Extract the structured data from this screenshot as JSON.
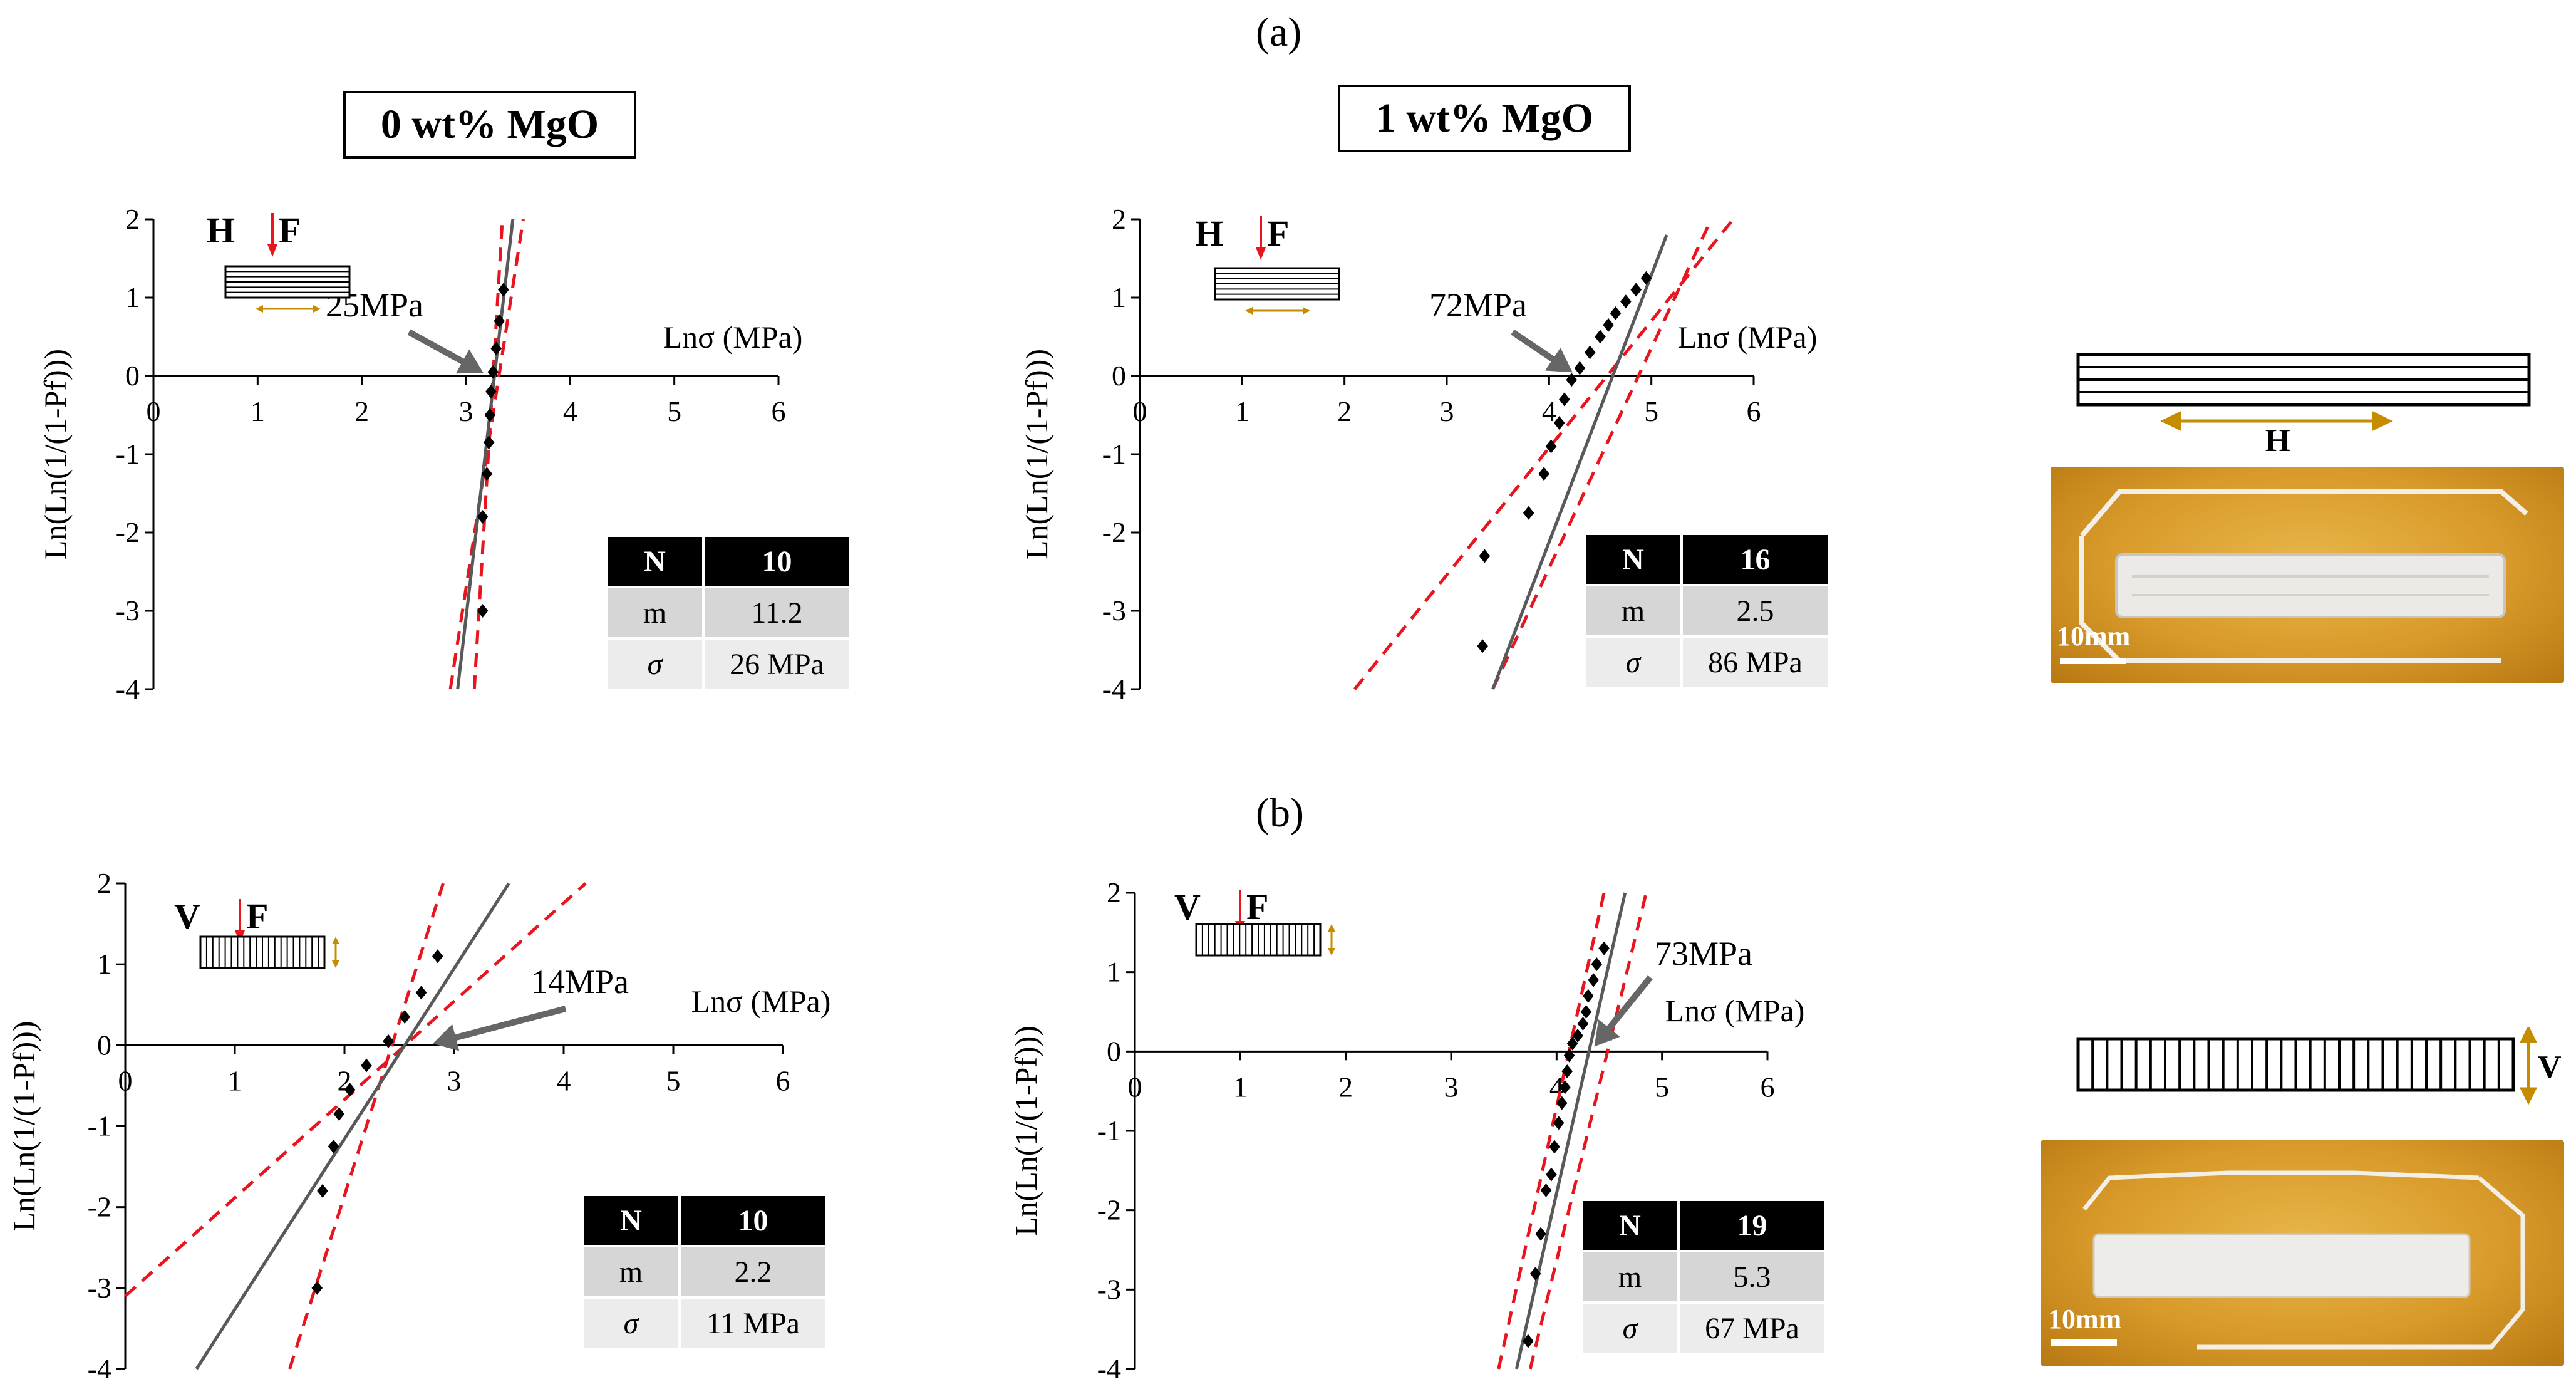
{
  "labels": {
    "panel_a": "(a)",
    "panel_b": "(b)",
    "title_0": "0 wt% MgO",
    "title_1": "1 wt% MgO"
  },
  "photos": {
    "scale_label": "10mm",
    "orientation_h": "H",
    "orientation_v": "V"
  },
  "colors": {
    "fit": "#595959",
    "bound": "#e8141e",
    "point": "#000000",
    "arrow": "#c58c00",
    "table_header": "#000000",
    "table_row": "#d9d9d9"
  },
  "chart_data": [
    {
      "type": "scatter",
      "id": "a0",
      "xlabel": "Lnσ (MPa)",
      "ylabel": "Ln(Ln(1/(1-Pf)))",
      "xlim": [
        0,
        6
      ],
      "ylim": [
        -4,
        2
      ],
      "x_ticks": [
        "0",
        "1",
        "2",
        "3",
        "4",
        "5",
        "6"
      ],
      "y_ticks": [
        "2",
        "1",
        "0",
        "-1",
        "-2",
        "-3",
        "-4"
      ],
      "orientation": "H",
      "force": "F",
      "annotation": "25MPa",
      "annotation_target": [
        3.22,
        0
      ],
      "points": [
        [
          3.16,
          -3.0
        ],
        [
          3.16,
          -1.8
        ],
        [
          3.2,
          -1.25
        ],
        [
          3.22,
          -0.85
        ],
        [
          3.23,
          -0.5
        ],
        [
          3.24,
          -0.2
        ],
        [
          3.26,
          0.05
        ],
        [
          3.29,
          0.35
        ],
        [
          3.32,
          0.7
        ],
        [
          3.36,
          1.1
        ]
      ],
      "fit": [
        [
          2.92,
          -4
        ],
        [
          3.45,
          2
        ]
      ],
      "bounds": [
        [
          [
            2.85,
            -4
          ],
          [
            3.55,
            2
          ]
        ],
        [
          [
            3.08,
            -4
          ],
          [
            3.35,
            2
          ]
        ]
      ],
      "table": {
        "header": [
          "N",
          "10"
        ],
        "rows": [
          [
            "m",
            "11.2"
          ],
          [
            "σ",
            "26 MPa"
          ]
        ]
      }
    },
    {
      "type": "scatter",
      "id": "a1",
      "xlabel": "Lnσ (MPa)",
      "ylabel": "Ln(Ln(1/(1-Pf)))",
      "xlim": [
        0,
        6
      ],
      "ylim": [
        -4,
        2
      ],
      "x_ticks": [
        "0",
        "1",
        "2",
        "3",
        "4",
        "5",
        "6"
      ],
      "y_ticks": [
        "2",
        "1",
        "0",
        "-1",
        "-2",
        "-3",
        "-4"
      ],
      "orientation": "H",
      "force": "F",
      "annotation": "72MPa",
      "annotation_target": [
        4.28,
        0
      ],
      "points": [
        [
          3.35,
          -3.45
        ],
        [
          3.37,
          -2.3
        ],
        [
          3.8,
          -1.75
        ],
        [
          3.95,
          -1.25
        ],
        [
          4.02,
          -0.9
        ],
        [
          4.1,
          -0.6
        ],
        [
          4.15,
          -0.3
        ],
        [
          4.22,
          -0.05
        ],
        [
          4.3,
          0.1
        ],
        [
          4.4,
          0.3
        ],
        [
          4.5,
          0.5
        ],
        [
          4.58,
          0.65
        ],
        [
          4.65,
          0.8
        ],
        [
          4.75,
          0.95
        ],
        [
          4.85,
          1.1
        ],
        [
          4.95,
          1.25
        ]
      ],
      "fit": [
        [
          3.45,
          -4
        ],
        [
          5.15,
          1.8
        ]
      ],
      "bounds": [
        [
          [
            2.1,
            -4
          ],
          [
            5.8,
            2
          ]
        ],
        [
          [
            3.45,
            -4
          ],
          [
            5.55,
            1.9
          ]
        ]
      ],
      "table": {
        "header": [
          "N",
          "16"
        ],
        "rows": [
          [
            "m",
            "2.5"
          ],
          [
            "σ",
            "86 MPa"
          ]
        ]
      }
    },
    {
      "type": "scatter",
      "id": "b0",
      "xlabel": "Lnσ (MPa)",
      "ylabel": "Ln(Ln(1/(1-Pf)))",
      "xlim": [
        0,
        6
      ],
      "ylim": [
        -4,
        2
      ],
      "x_ticks": [
        "0",
        "1",
        "2",
        "3",
        "4",
        "5",
        "6"
      ],
      "y_ticks": [
        "2",
        "1",
        "0",
        "-1",
        "-2",
        "-3",
        "-4"
      ],
      "orientation": "V",
      "force": "F",
      "annotation": "14MPa",
      "annotation_target": [
        2.75,
        0
      ],
      "points": [
        [
          1.75,
          -3.0
        ],
        [
          1.8,
          -1.8
        ],
        [
          1.9,
          -1.25
        ],
        [
          1.95,
          -0.85
        ],
        [
          2.05,
          -0.55
        ],
        [
          2.2,
          -0.25
        ],
        [
          2.4,
          0.05
        ],
        [
          2.55,
          0.35
        ],
        [
          2.7,
          0.65
        ],
        [
          2.85,
          1.1
        ]
      ],
      "fit": [
        [
          0.65,
          -4
        ],
        [
          3.5,
          2
        ]
      ],
      "bounds": [
        [
          [
            0,
            -3.1
          ],
          [
            4.2,
            2
          ]
        ],
        [
          [
            1.5,
            -4
          ],
          [
            2.9,
            2
          ]
        ]
      ],
      "table": {
        "header": [
          "N",
          "10"
        ],
        "rows": [
          [
            "m",
            "2.2"
          ],
          [
            "σ",
            "11 MPa"
          ]
        ]
      }
    },
    {
      "type": "scatter",
      "id": "b1",
      "xlabel": "Lnσ (MPa)",
      "ylabel": "Ln(Ln(1/(1-Pf)))",
      "xlim": [
        0,
        6
      ],
      "ylim": [
        -4,
        2
      ],
      "x_ticks": [
        "0",
        "1",
        "2",
        "3",
        "4",
        "5",
        "6"
      ],
      "y_ticks": [
        "2",
        "1",
        "0",
        "-1",
        "-2",
        "-3",
        "-4"
      ],
      "orientation": "V",
      "force": "F",
      "annotation": "73MPa",
      "annotation_target": [
        4.32,
        0
      ],
      "points": [
        [
          3.73,
          -3.65
        ],
        [
          3.8,
          -2.8
        ],
        [
          3.85,
          -2.3
        ],
        [
          3.9,
          -1.75
        ],
        [
          3.95,
          -1.55
        ],
        [
          3.98,
          -1.2
        ],
        [
          4.02,
          -0.9
        ],
        [
          4.05,
          -0.65
        ],
        [
          4.08,
          -0.45
        ],
        [
          4.1,
          -0.25
        ],
        [
          4.12,
          -0.05
        ],
        [
          4.15,
          0.1
        ],
        [
          4.2,
          0.2
        ],
        [
          4.25,
          0.35
        ],
        [
          4.28,
          0.5
        ],
        [
          4.3,
          0.7
        ],
        [
          4.35,
          0.9
        ],
        [
          4.38,
          1.1
        ],
        [
          4.45,
          1.3
        ]
      ],
      "fit": [
        [
          3.62,
          -4
        ],
        [
          4.65,
          2
        ]
      ],
      "bounds": [
        [
          [
            3.45,
            -4
          ],
          [
            4.45,
            2
          ]
        ],
        [
          [
            3.75,
            -4
          ],
          [
            4.85,
            2
          ]
        ]
      ],
      "table": {
        "header": [
          "N",
          "19"
        ],
        "rows": [
          [
            "m",
            "5.3"
          ],
          [
            "σ",
            "67 MPa"
          ]
        ]
      }
    }
  ]
}
